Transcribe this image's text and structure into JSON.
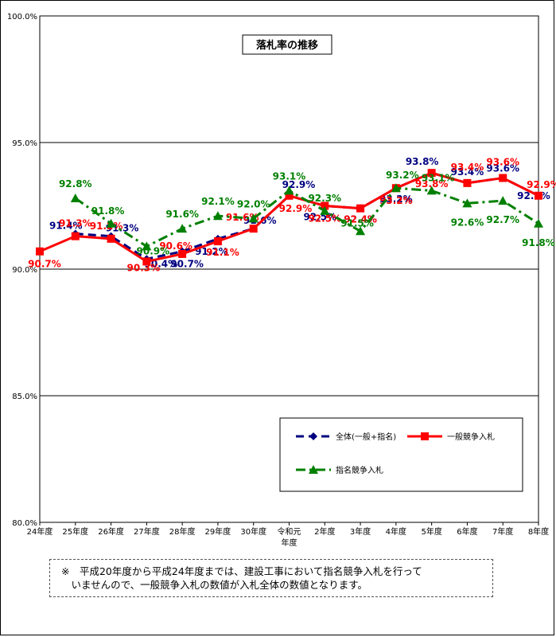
{
  "chart_data": {
    "type": "line",
    "title": "落札率の推移",
    "xlabel": "",
    "ylabel": "",
    "categories": [
      "24年度",
      "25年度",
      "26年度",
      "27年度",
      "28年度",
      "29年度",
      "30年度",
      "令和元年度",
      "2年度",
      "3年度",
      "4年度",
      "5年度",
      "6年度",
      "7年度",
      "8年度"
    ],
    "ylim": [
      80,
      100
    ],
    "yticks": [
      "80.0%",
      "85.0%",
      "90.0%",
      "95.0%",
      "100.0%"
    ],
    "grid": true,
    "legend_position": "bottom-right",
    "series": [
      {
        "name": "全体(一般+指名)",
        "color": "#000080",
        "marker": "diamond",
        "dash": "dashed",
        "values": [
          null,
          91.4,
          91.3,
          90.4,
          90.7,
          91.2,
          91.6,
          92.9,
          92.5,
          92.4,
          93.2,
          93.8,
          93.4,
          93.6,
          92.9
        ],
        "labels": [
          null,
          "91.4%",
          "91.3%",
          "90.4%",
          "90.7%",
          "91.2%",
          "91.6%",
          "92.9%",
          "92.5%",
          "92.4%",
          "93.2%",
          "93.8%",
          "93.4%",
          "93.6%",
          "92.9%"
        ]
      },
      {
        "name": "一般競争入札",
        "color": "#ff0000",
        "marker": "square",
        "dash": "solid",
        "values": [
          90.7,
          91.3,
          91.2,
          90.3,
          90.6,
          91.1,
          91.6,
          92.9,
          92.5,
          92.4,
          93.2,
          93.8,
          93.4,
          93.6,
          92.9
        ],
        "labels": [
          "90.7%",
          "91.3%",
          "91.2%",
          "90.3%",
          "90.6%",
          "91.1%",
          "91.6%",
          "92.9%",
          "92.5%",
          "92.4%",
          "93.2%",
          "93.8%",
          "93.4%",
          "93.6%",
          "92.9%"
        ]
      },
      {
        "name": "指名競争入札",
        "color": "#008000",
        "marker": "triangle",
        "dash": "dashdot",
        "values": [
          null,
          92.8,
          91.8,
          90.9,
          91.6,
          92.1,
          92.0,
          93.1,
          92.3,
          91.5,
          93.2,
          93.1,
          92.6,
          92.7,
          91.8
        ],
        "labels": [
          null,
          "92.8%",
          "91.8%",
          "90.9%",
          "91.6%",
          "92.1%",
          "92.0%",
          "93.1%",
          "92.3%",
          "91.5%",
          "93.2%",
          "93.1%",
          "92.6%",
          "92.7%",
          "91.8%"
        ]
      }
    ]
  },
  "note": {
    "line1": "※　平成20年度から平成24年度までは、建設工事において指名競争入札を行って",
    "line2": "　いませんので、一般競争入札の数値が入札全体の数値となります。"
  }
}
